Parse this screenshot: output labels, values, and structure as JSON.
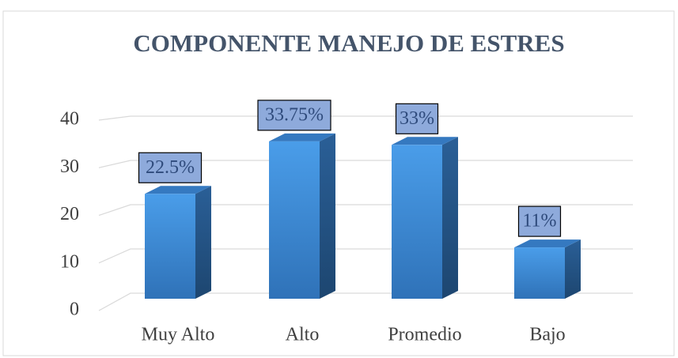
{
  "chart_data": {
    "type": "bar3d",
    "title": "COMPONENTE MANEJO DE ESTRES",
    "categories": [
      "Muy Alto",
      "Alto",
      "Promedio",
      "Bajo"
    ],
    "values": [
      22.5,
      33.75,
      33,
      11
    ],
    "value_labels": [
      "22.5%",
      "33.75%",
      "33%",
      "11%"
    ],
    "color": "#3f8fdc",
    "ylim": [
      0,
      40
    ],
    "yticks": [
      0,
      10,
      20,
      30,
      40
    ],
    "grid": true
  }
}
